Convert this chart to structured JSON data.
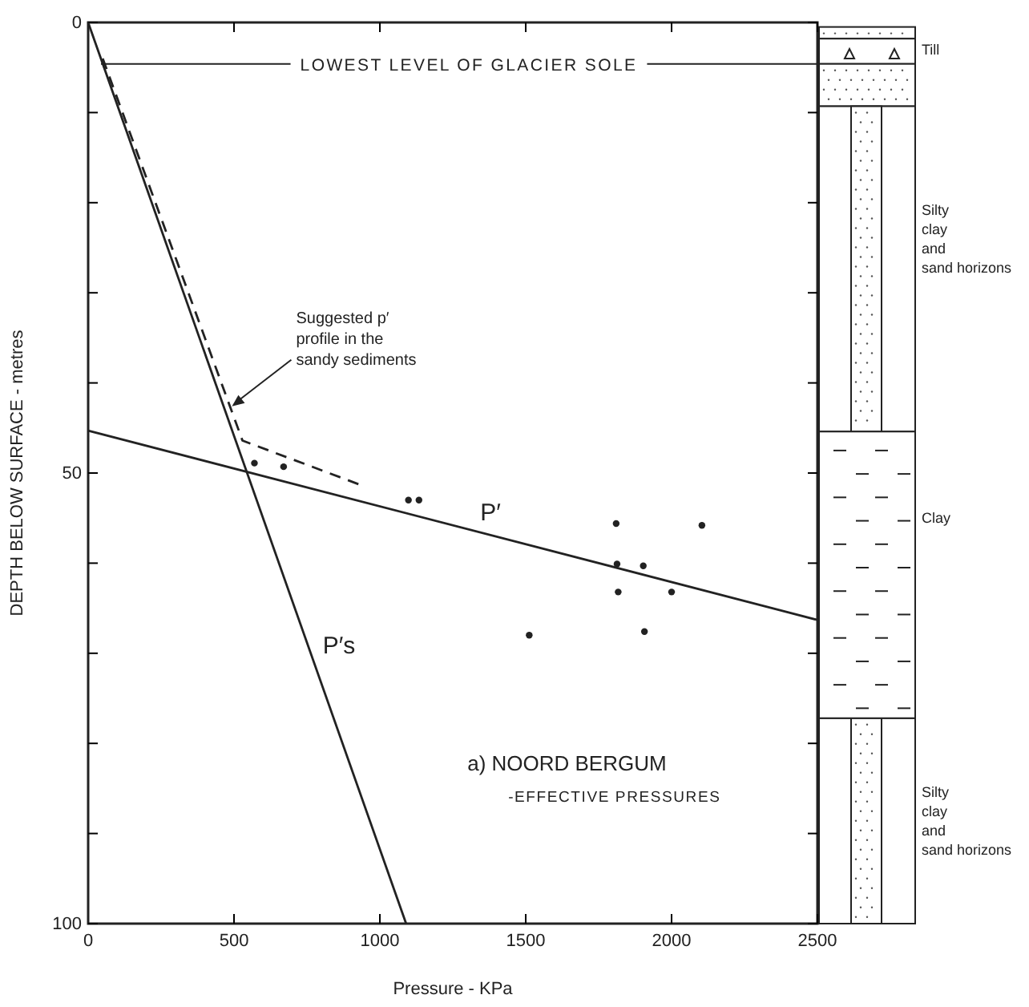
{
  "chart_data": {
    "type": "scatter",
    "title": "a) NOORD BERGUM",
    "subtitle": "-EFFECTIVE PRESSURES",
    "xlabel": "Pressure - KPa",
    "ylabel": "DEPTH BELOW SURFACE - metres",
    "xlim": [
      0,
      2500
    ],
    "ylim": [
      100,
      0
    ],
    "xticks": [
      0,
      500,
      1000,
      1500,
      2000,
      2500
    ],
    "yticks": [
      0,
      {
        "value": 10,
        "label": null
      },
      {
        "value": 20,
        "label": null
      },
      {
        "value": 30,
        "label": null
      },
      {
        "value": 40,
        "label": null
      },
      50,
      {
        "value": 60,
        "label": null
      },
      {
        "value": 70,
        "label": null
      },
      {
        "value": 80,
        "label": null
      },
      {
        "value": 90,
        "label": null
      },
      100
    ],
    "grid": false,
    "series": [
      {
        "marker": "circle",
        "color": "#222222",
        "x": [
          570,
          670,
          1098,
          1134,
          1810,
          2104,
          1813,
          1903,
          1817,
          2000,
          1512,
          1907
        ],
        "values": [
          48.9,
          49.3,
          53,
          53,
          55.6,
          55.8,
          60.1,
          60.3,
          63.2,
          63.2,
          68,
          67.6
        ]
      },
      {
        "type": "line",
        "name": "P′",
        "line_style": "solid",
        "color": "#222222",
        "x": [
          0,
          2500
        ],
        "values": [
          45.3,
          66.3
        ]
      },
      {
        "type": "line",
        "name": "P′s",
        "line_style": "solid",
        "color": "#222222",
        "x": [
          0,
          1090
        ],
        "values": [
          0,
          100
        ]
      },
      {
        "type": "line",
        "line_style": "dashed",
        "color": "#222222",
        "x": [
          50,
          529,
          932
        ],
        "values": [
          4,
          46.4,
          51.3
        ]
      }
    ],
    "ref_lines": [
      {
        "axis": "y",
        "value": 4.6,
        "label": "LOWEST LEVEL OF GLACIER SOLE"
      }
    ],
    "annotations": [
      {
        "text": "Suggested p′ profile in the sandy sediments",
        "x": 493,
        "y": 42.6
      },
      "Till",
      "Silty clay and sand horizons",
      "Clay",
      "Silty clay and sand horizons"
    ]
  }
}
